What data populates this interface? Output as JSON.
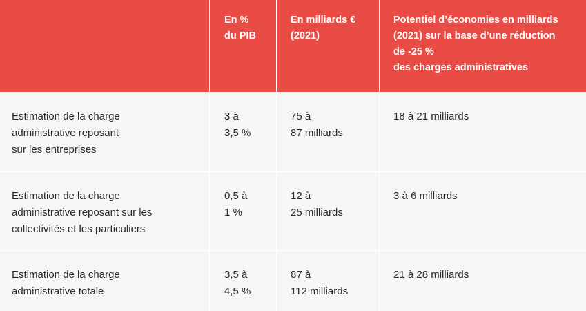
{
  "table": {
    "header": [
      [],
      [
        "En %",
        "du PIB"
      ],
      [
        "En milliards €",
        "(2021)"
      ],
      [
        "Potentiel d’économies en milliards",
        "(2021) sur la base d’une réduction",
        "de -25 %",
        "des charges administratives"
      ]
    ],
    "rows": [
      [
        [
          "Estimation de la charge",
          "administrative reposant",
          "sur les entreprises"
        ],
        [
          "3 à",
          "3,5 %"
        ],
        [
          "75 à",
          "87 milliards"
        ],
        [
          "18 à 21 milliards"
        ]
      ],
      [
        [
          "Estimation de la charge",
          "administrative reposant sur les",
          "collectivités et les particuliers"
        ],
        [
          "0,5 à",
          "1 %"
        ],
        [
          "12 à",
          "25 milliards"
        ],
        [
          "3 à 6 milliards"
        ]
      ],
      [
        [
          "Estimation de la charge",
          "administrative totale"
        ],
        [
          "3,5 à",
          "4,5 %"
        ],
        [
          "87 à",
          "112 milliards"
        ],
        [
          "21 à 28 milliards"
        ]
      ]
    ]
  }
}
